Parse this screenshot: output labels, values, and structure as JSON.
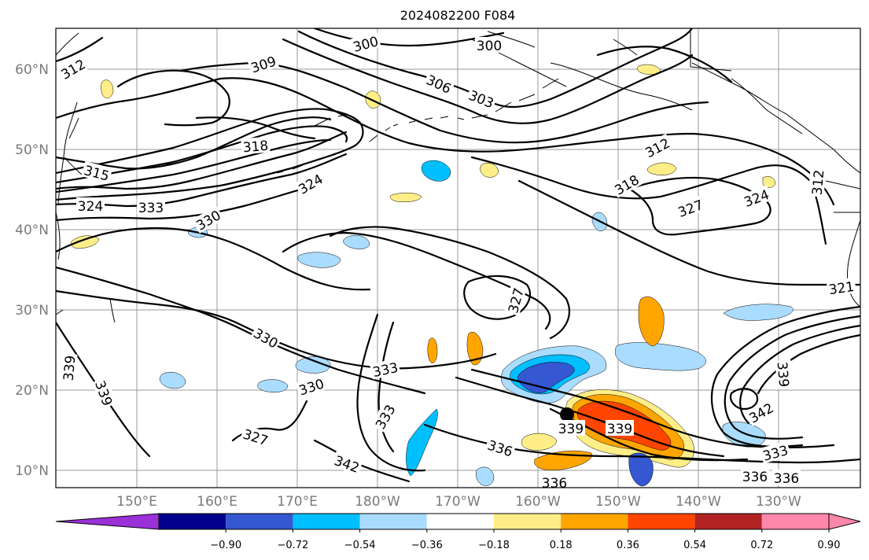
{
  "title": "2024082200 F084",
  "map": {
    "lat_ticks": [
      "60°N",
      "50°N",
      "40°N",
      "30°N",
      "20°N",
      "10°N"
    ],
    "lon_ticks": [
      "150°E",
      "160°E",
      "170°E",
      "180°W",
      "170°W",
      "160°W",
      "150°W",
      "140°W",
      "130°W"
    ],
    "contour_labels": [
      "300",
      "300",
      "303",
      "306",
      "309",
      "312",
      "312",
      "312",
      "315",
      "318",
      "318",
      "321",
      "324",
      "324",
      "327",
      "327",
      "327",
      "330",
      "330",
      "330",
      "333",
      "333",
      "333",
      "333",
      "336",
      "336",
      "336",
      "336",
      "339",
      "339",
      "339",
      "339",
      "339",
      "342",
      "342",
      "324"
    ],
    "marker": "storm-center-dot"
  },
  "colorbar": {
    "ticks": [
      "−0.90",
      "−0.72",
      "−0.54",
      "−0.36",
      "−0.18",
      "0.18",
      "0.36",
      "0.54",
      "0.72",
      "0.90"
    ],
    "colors": [
      "#9b30d9",
      "#00008b",
      "#3557d1",
      "#00bfff",
      "#aadcff",
      "#ffffff",
      "#ffee88",
      "#ffa500",
      "#ff4500",
      "#b22222",
      "#ff88aa",
      "#ff88aa"
    ]
  }
}
